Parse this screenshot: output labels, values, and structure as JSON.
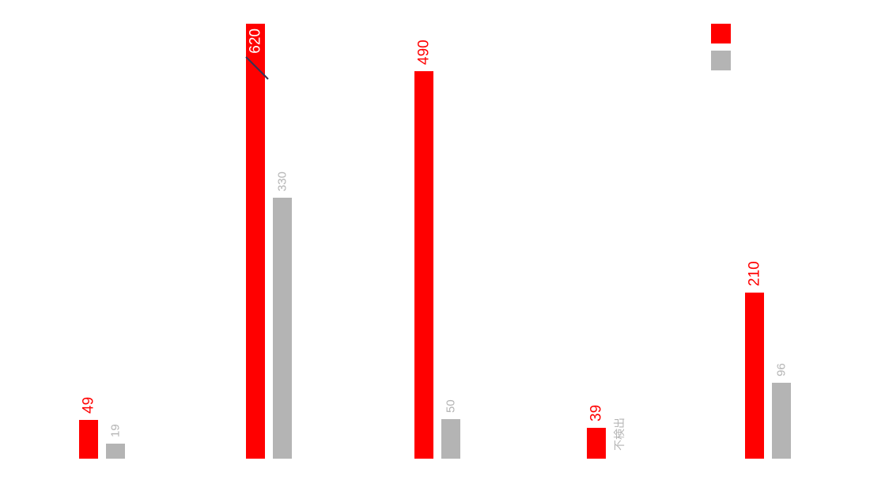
{
  "colors": {
    "series_a": "#ff0000",
    "series_b": "#b4b4b4",
    "break_mark": "#333355"
  },
  "legend": {
    "series_a_label": "",
    "series_b_label": ""
  },
  "chart_data": {
    "type": "bar",
    "categories": [
      "",
      "",
      "",
      "",
      ""
    ],
    "ylim": [
      0,
      620
    ],
    "grid": false,
    "legend_position": "top-right",
    "axis_break_on": "group 2, series A (620 bar shortened)",
    "series": [
      {
        "values": [
          49,
          620,
          490,
          39,
          210
        ],
        "labels": [
          "49",
          "620",
          "490",
          "39",
          "210"
        ]
      },
      {
        "values": [
          19,
          330,
          50,
          null,
          96
        ],
        "labels": [
          "19",
          "330",
          "50",
          "不検出",
          "96"
        ]
      }
    ]
  }
}
